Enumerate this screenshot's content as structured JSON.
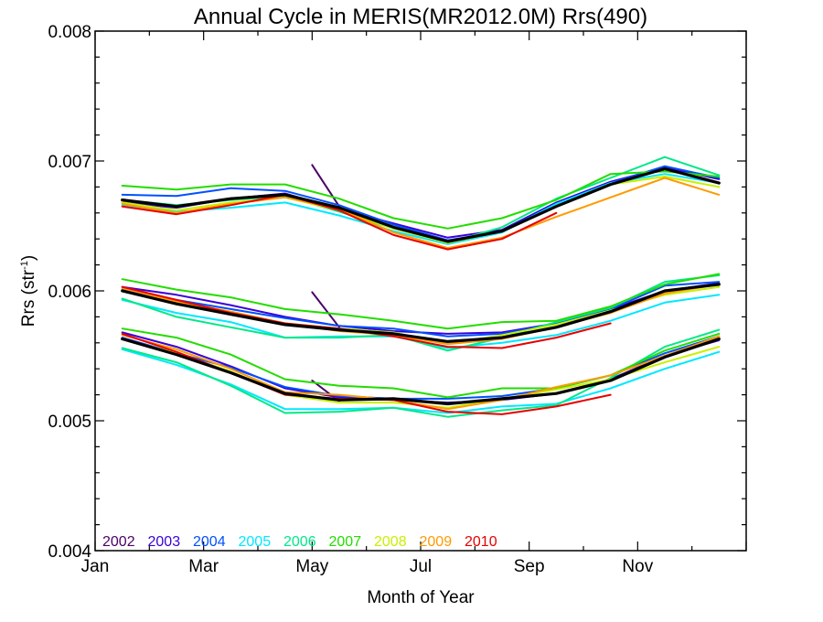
{
  "chart_data": {
    "type": "line",
    "title": "Annual Cycle in MERIS(MR2012.0M) Rrs(490)",
    "xlabel": "Month of Year",
    "ylabel_main": "Rrs (str",
    "ylabel_sup": "-1",
    "ylabel_close": ")",
    "xlim": [
      1,
      13
    ],
    "ylim": [
      0.004,
      0.008
    ],
    "x_ticks": [
      {
        "value": 1,
        "label": "Jan"
      },
      {
        "value": 3,
        "label": "Mar"
      },
      {
        "value": 5,
        "label": "May"
      },
      {
        "value": 7,
        "label": "Jul"
      },
      {
        "value": 9,
        "label": "Sep"
      },
      {
        "value": 11,
        "label": "Nov"
      }
    ],
    "y_ticks": [
      {
        "value": 0.004,
        "label": "0.004"
      },
      {
        "value": 0.005,
        "label": "0.005"
      },
      {
        "value": 0.006,
        "label": "0.006"
      },
      {
        "value": 0.007,
        "label": "0.007"
      },
      {
        "value": 0.008,
        "label": "0.008"
      }
    ],
    "legend_position": "bottom-left",
    "grid": false,
    "years": [
      {
        "name": "2002",
        "color": "#4b0068"
      },
      {
        "name": "2003",
        "color": "#3a00d8"
      },
      {
        "name": "2004",
        "color": "#0050ff"
      },
      {
        "name": "2005",
        "color": "#00e8ff"
      },
      {
        "name": "2006",
        "color": "#00e888"
      },
      {
        "name": "2007",
        "color": "#22dd00"
      },
      {
        "name": "2008",
        "color": "#c8f000"
      },
      {
        "name": "2009",
        "color": "#ff9a00"
      },
      {
        "name": "2010",
        "color": "#e80000"
      }
    ],
    "mean_color": "#000000",
    "series": [
      {
        "year": "2002",
        "group": "upper",
        "x": [
          5,
          5.5
        ],
        "values": [
          0.00697,
          0.00665
        ]
      },
      {
        "year": "2002",
        "group": "middle",
        "x": [
          5,
          5.5
        ],
        "values": [
          0.00599,
          0.00572
        ]
      },
      {
        "year": "2002",
        "group": "lower",
        "x": [
          5,
          5.5
        ],
        "values": [
          0.00531,
          0.00515
        ]
      },
      {
        "year": "2003",
        "group": "upper",
        "x": [
          1.5,
          2.5,
          3.5,
          4.5,
          5.5,
          6.5,
          7.5,
          8.5,
          9.5,
          10.5,
          11.5,
          12.5
        ],
        "values": [
          0.00668,
          0.00664,
          0.00671,
          0.00675,
          0.00663,
          0.00652,
          0.00641,
          0.00647,
          0.00668,
          0.00684,
          0.00695,
          0.00686
        ]
      },
      {
        "year": "2003",
        "group": "middle",
        "x": [
          1.5,
          2.5,
          3.5,
          4.5,
          5.5,
          6.5,
          7.5,
          8.5,
          9.5,
          10.5,
          11.5,
          12.5
        ],
        "values": [
          0.00603,
          0.00597,
          0.00589,
          0.0058,
          0.00573,
          0.00569,
          0.00567,
          0.00568,
          0.00575,
          0.00586,
          0.006,
          0.00606
        ]
      },
      {
        "year": "2003",
        "group": "middle2",
        "x": [
          1.5,
          2.5,
          3.5,
          4.5,
          5.5,
          6.5,
          7.5,
          8.5,
          9.5,
          10.5,
          11.5,
          12.5
        ],
        "values": [
          0.00568,
          0.00557,
          0.00542,
          0.00525,
          0.00518,
          0.00516,
          0.00514,
          0.00516,
          0.00521,
          0.00532,
          0.0055,
          0.00562
        ]
      },
      {
        "year": "2004",
        "group": "upper",
        "x": [
          1.5,
          2.5,
          3.5,
          4.5,
          5.5,
          6.5,
          7.5,
          8.5,
          9.5,
          10.5,
          11.5,
          12.5
        ],
        "values": [
          0.00674,
          0.00673,
          0.00679,
          0.00677,
          0.00666,
          0.00651,
          0.00639,
          0.00646,
          0.00667,
          0.00683,
          0.00696,
          0.00687
        ]
      },
      {
        "year": "2004",
        "group": "middle",
        "x": [
          1.5,
          2.5,
          3.5,
          4.5,
          5.5,
          6.5,
          7.5,
          8.5,
          9.5,
          10.5,
          11.5,
          12.5
        ],
        "values": [
          0.00601,
          0.00593,
          0.00586,
          0.00579,
          0.00573,
          0.00571,
          0.00565,
          0.00567,
          0.00575,
          0.00586,
          0.00604,
          0.00607
        ]
      },
      {
        "year": "2004",
        "group": "lower",
        "x": [
          1.5,
          2.5,
          3.5,
          4.5,
          5.5,
          6.5,
          7.5,
          8.5,
          9.5,
          10.5,
          11.5,
          12.5
        ],
        "values": [
          0.00564,
          0.00552,
          0.00541,
          0.00526,
          0.00519,
          0.00517,
          0.00517,
          0.00519,
          0.00525,
          0.00535,
          0.00552,
          0.00565
        ]
      },
      {
        "year": "2005",
        "group": "upper",
        "x": [
          1.5,
          2.5,
          3.5,
          4.5,
          5.5,
          6.5,
          7.5,
          8.5,
          9.5,
          10.5,
          11.5,
          12.5
        ],
        "values": [
          0.00666,
          0.00661,
          0.00664,
          0.00668,
          0.00658,
          0.00646,
          0.00636,
          0.00645,
          0.00667,
          0.00683,
          0.0069,
          0.00683
        ]
      },
      {
        "year": "2005",
        "group": "middle",
        "x": [
          1.5,
          2.5,
          3.5,
          4.5,
          5.5,
          6.5,
          7.5,
          8.5,
          9.5,
          10.5,
          11.5,
          12.5
        ],
        "values": [
          0.00593,
          0.00583,
          0.00576,
          0.00564,
          0.00565,
          0.00565,
          0.00556,
          0.0056,
          0.00566,
          0.00577,
          0.00591,
          0.00597
        ]
      },
      {
        "year": "2005",
        "group": "lower",
        "x": [
          1.5,
          2.5,
          3.5,
          4.5,
          5.5,
          6.5,
          7.5,
          8.5,
          9.5,
          10.5,
          11.5,
          12.5
        ],
        "values": [
          0.00555,
          0.00543,
          0.00528,
          0.00509,
          0.00509,
          0.0051,
          0.00506,
          0.00511,
          0.00513,
          0.00525,
          0.0054,
          0.00553
        ]
      },
      {
        "year": "2006",
        "group": "upper",
        "x": [
          1.5,
          2.5,
          3.5,
          4.5,
          5.5,
          6.5,
          7.5,
          8.5,
          9.5,
          10.5,
          11.5,
          12.5
        ],
        "values": [
          0.0067,
          0.00666,
          0.0067,
          0.00673,
          0.00661,
          0.00648,
          0.00637,
          0.00649,
          0.00671,
          0.00687,
          0.00703,
          0.00689
        ]
      },
      {
        "year": "2006",
        "group": "middle",
        "x": [
          1.5,
          2.5,
          3.5,
          4.5,
          5.5,
          6.5,
          7.5,
          8.5,
          9.5,
          10.5,
          11.5,
          12.5
        ],
        "values": [
          0.00594,
          0.0058,
          0.00572,
          0.00564,
          0.00564,
          0.00566,
          0.00554,
          0.00564,
          0.00576,
          0.00587,
          0.00607,
          0.00612
        ]
      },
      {
        "year": "2006",
        "group": "lower",
        "x": [
          1.5,
          2.5,
          3.5,
          4.5,
          5.5,
          6.5,
          7.5,
          8.5,
          9.5,
          10.5,
          11.5,
          12.5
        ],
        "values": [
          0.00556,
          0.00545,
          0.00527,
          0.00506,
          0.00507,
          0.0051,
          0.00503,
          0.00508,
          0.00512,
          0.00533,
          0.00557,
          0.0057
        ]
      },
      {
        "year": "2007",
        "group": "upper",
        "x": [
          1.5,
          2.5,
          3.5,
          4.5,
          5.5,
          6.5,
          7.5,
          8.5,
          9.5,
          10.5,
          11.5,
          12.5
        ],
        "values": [
          0.00681,
          0.00678,
          0.00682,
          0.00682,
          0.00671,
          0.00656,
          0.00648,
          0.00656,
          0.0067,
          0.0069,
          0.00692,
          0.00688
        ]
      },
      {
        "year": "2007",
        "group": "middle",
        "x": [
          1.5,
          2.5,
          3.5,
          4.5,
          5.5,
          6.5,
          7.5,
          8.5,
          9.5,
          10.5,
          11.5,
          12.5
        ],
        "values": [
          0.00609,
          0.00601,
          0.00595,
          0.00586,
          0.00582,
          0.00577,
          0.00571,
          0.00576,
          0.00577,
          0.00588,
          0.00605,
          0.00613
        ]
      },
      {
        "year": "2007",
        "group": "lower",
        "x": [
          1.5,
          2.5,
          3.5,
          4.5,
          5.5,
          6.5,
          7.5,
          8.5,
          9.5,
          10.5,
          11.5,
          12.5
        ],
        "values": [
          0.00571,
          0.00564,
          0.00551,
          0.00532,
          0.00527,
          0.00525,
          0.00518,
          0.00525,
          0.00525,
          0.00535,
          0.00554,
          0.00567
        ]
      },
      {
        "year": "2008",
        "group": "upper",
        "x": [
          1.5,
          2.5,
          3.5,
          4.5,
          5.5,
          6.5,
          7.5,
          8.5,
          9.5,
          10.5,
          11.5,
          12.5
        ],
        "values": [
          0.00668,
          0.00662,
          0.00668,
          0.00672,
          0.00662,
          0.00648,
          0.00637,
          0.00646,
          0.00665,
          0.00682,
          0.00688,
          0.0068
        ]
      },
      {
        "year": "2008",
        "group": "middle",
        "x": [
          1.5,
          2.5,
          3.5,
          4.5,
          5.5,
          6.5,
          7.5,
          8.5,
          9.5,
          10.5,
          11.5,
          12.5
        ],
        "values": [
          0.006,
          0.00591,
          0.00583,
          0.00575,
          0.00571,
          0.00568,
          0.00559,
          0.00566,
          0.00574,
          0.00585,
          0.00597,
          0.00603
        ]
      },
      {
        "year": "2008",
        "group": "lower",
        "x": [
          1.5,
          2.5,
          3.5,
          4.5,
          5.5,
          6.5,
          7.5,
          8.5,
          9.5,
          10.5,
          11.5,
          12.5
        ],
        "values": [
          0.00563,
          0.00552,
          0.00538,
          0.0052,
          0.00514,
          0.00514,
          0.0051,
          0.00517,
          0.00524,
          0.00532,
          0.00545,
          0.00557
        ]
      },
      {
        "year": "2009",
        "group": "upper",
        "x": [
          1.5,
          2.5,
          3.5,
          4.5,
          5.5,
          6.5,
          7.5,
          8.5,
          9.5,
          10.5,
          11.5,
          12.5
        ],
        "values": [
          0.00667,
          0.0066,
          0.00667,
          0.00672,
          0.00663,
          0.00645,
          0.00633,
          0.00641,
          0.00657,
          0.00672,
          0.00687,
          0.00674
        ]
      },
      {
        "year": "2009",
        "group": "middle",
        "x": [
          1.5,
          2.5,
          3.5,
          4.5,
          5.5,
          6.5,
          7.5,
          8.5,
          9.5,
          10.5,
          11.5,
          12.5
        ],
        "values": [
          0.00602,
          0.00592,
          0.00584,
          0.00575,
          0.00569,
          0.00566,
          0.00559,
          0.00563,
          0.00572,
          0.00583,
          0.00598,
          0.00605
        ]
      },
      {
        "year": "2009",
        "group": "lower",
        "x": [
          1.5,
          2.5,
          3.5,
          4.5,
          5.5,
          6.5,
          7.5,
          8.5,
          9.5,
          10.5,
          11.5,
          12.5
        ],
        "values": [
          0.00566,
          0.00555,
          0.0054,
          0.00522,
          0.0052,
          0.00516,
          0.00509,
          0.00516,
          0.00526,
          0.00535,
          0.0055,
          0.00565
        ]
      },
      {
        "year": "2010",
        "group": "upper",
        "x": [
          1.5,
          2.5,
          3.5,
          4.5,
          5.5,
          6.5,
          7.5,
          8.5,
          9.5
        ],
        "values": [
          0.00665,
          0.00659,
          0.00666,
          0.00674,
          0.00662,
          0.00643,
          0.00632,
          0.0064,
          0.0066
        ]
      },
      {
        "year": "2010",
        "group": "middle",
        "x": [
          1.5,
          2.5,
          3.5,
          4.5,
          5.5,
          6.5,
          7.5,
          8.5,
          9.5,
          10.5
        ],
        "values": [
          0.00603,
          0.00593,
          0.00583,
          0.00575,
          0.00571,
          0.00565,
          0.00557,
          0.00556,
          0.00564,
          0.00575
        ]
      },
      {
        "year": "2010",
        "group": "lower",
        "x": [
          1.5,
          2.5,
          3.5,
          4.5,
          5.5,
          6.5,
          7.5,
          8.5,
          9.5,
          10.5
        ],
        "values": [
          0.00567,
          0.00553,
          0.00537,
          0.0052,
          0.00517,
          0.00516,
          0.00507,
          0.00505,
          0.00511,
          0.0052
        ]
      },
      {
        "year": "mean",
        "group": "upper",
        "x": [
          1.5,
          2.5,
          3.5,
          4.5,
          5.5,
          6.5,
          7.5,
          8.5,
          9.5,
          10.5,
          11.5,
          12.5
        ],
        "values": [
          0.0067,
          0.00665,
          0.00671,
          0.00674,
          0.00664,
          0.00649,
          0.00638,
          0.00646,
          0.00665,
          0.00682,
          0.00694,
          0.00683
        ]
      },
      {
        "year": "mean",
        "group": "middle",
        "x": [
          1.5,
          2.5,
          3.5,
          4.5,
          5.5,
          6.5,
          7.5,
          8.5,
          9.5,
          10.5,
          11.5,
          12.5
        ],
        "values": [
          0.006,
          0.0059,
          0.00582,
          0.00574,
          0.0057,
          0.00567,
          0.00561,
          0.00564,
          0.00572,
          0.00584,
          0.006,
          0.00605
        ]
      },
      {
        "year": "mean",
        "group": "lower",
        "x": [
          1.5,
          2.5,
          3.5,
          4.5,
          5.5,
          6.5,
          7.5,
          8.5,
          9.5,
          10.5,
          11.5,
          12.5
        ],
        "values": [
          0.00563,
          0.00551,
          0.00537,
          0.00521,
          0.00516,
          0.00517,
          0.00513,
          0.00517,
          0.00521,
          0.00531,
          0.00549,
          0.00563
        ]
      }
    ]
  }
}
